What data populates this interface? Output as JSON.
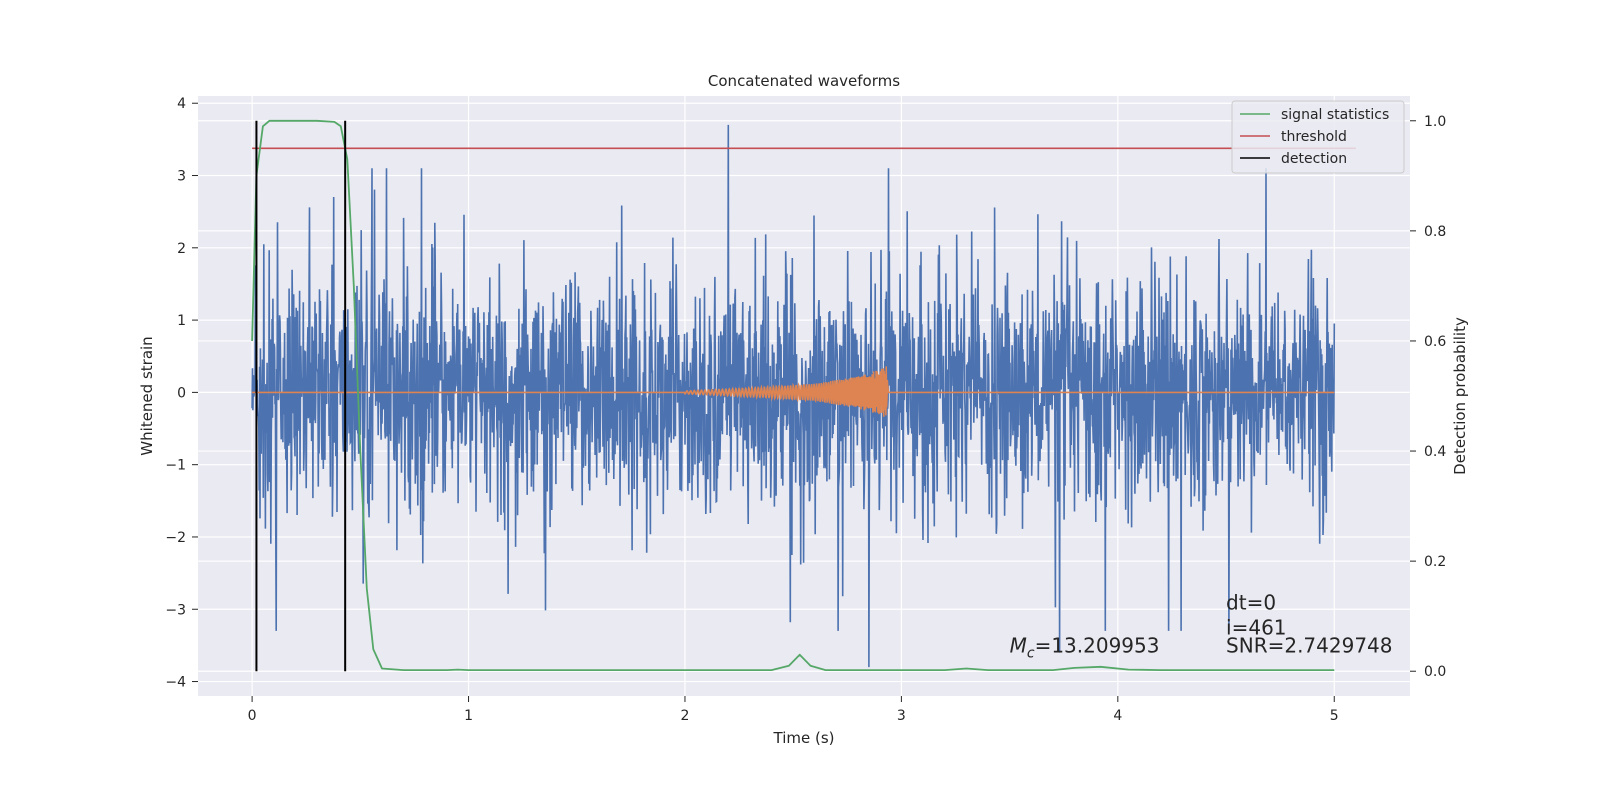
{
  "chart_data": {
    "type": "line",
    "title": "Concatenated waveforms",
    "xlabel": "Time (s)",
    "ylabel_left": "Whitened strain",
    "ylabel_right": "Detection probability",
    "xlim": [
      -0.25,
      5.35
    ],
    "ylim_left": [
      -4.2,
      4.1
    ],
    "ylim_right": [
      -0.045,
      1.045
    ],
    "x_ticks": [
      0,
      1,
      2,
      3,
      4,
      5
    ],
    "y_left_ticks": [
      -4,
      -3,
      -2,
      -1,
      0,
      1,
      2,
      3,
      4
    ],
    "y_right_ticks": [
      "0.0",
      "0.2",
      "0.4",
      "0.6",
      "0.8",
      "1.0"
    ],
    "grid": true,
    "legend_position": "top-right",
    "legend": [
      {
        "label": "signal statistics",
        "color": "#55a868"
      },
      {
        "label": "threshold",
        "color": "#c44e52"
      },
      {
        "label": "detection",
        "color": "#000000"
      }
    ],
    "series": [
      {
        "key": "noise",
        "axis": "left",
        "color": "#4c72b0",
        "x_range": [
          0,
          5
        ],
        "sample_count": 2600,
        "typical_range": [
          -1.2,
          1.2
        ],
        "observed_range": [
          -3.8,
          3.7
        ],
        "peaks": [
          {
            "x": 2.2,
            "y": 3.7
          },
          {
            "x": 3.73,
            "y": -3.6
          },
          {
            "x": 2.85,
            "y": -3.8
          }
        ]
      },
      {
        "key": "injected_waveform",
        "axis": "left",
        "color": "#dd8452",
        "x": [
          0,
          2.0,
          2.3,
          2.6,
          2.8,
          2.9,
          2.93,
          2.94,
          5
        ],
        "amplitude": [
          0,
          0.02,
          0.06,
          0.12,
          0.22,
          0.32,
          0.36,
          0,
          0
        ]
      },
      {
        "name": "signal statistics",
        "axis": "right",
        "color": "#55a868",
        "x": [
          0,
          0.02,
          0.05,
          0.08,
          0.12,
          0.2,
          0.3,
          0.38,
          0.41,
          0.44,
          0.47,
          0.5,
          0.53,
          0.56,
          0.6,
          0.7,
          0.9,
          0.95,
          1.0,
          1.5,
          2.0,
          2.4,
          2.48,
          2.53,
          2.58,
          2.65,
          3.0,
          3.2,
          3.3,
          3.4,
          3.7,
          3.8,
          3.92,
          4.05,
          4.2,
          5.0
        ],
        "y": [
          0.6,
          0.9,
          0.99,
          1.0,
          1.0,
          1.0,
          1.0,
          0.998,
          0.99,
          0.93,
          0.7,
          0.4,
          0.15,
          0.04,
          0.005,
          0.002,
          0.002,
          0.003,
          0.002,
          0.002,
          0.002,
          0.002,
          0.01,
          0.03,
          0.01,
          0.002,
          0.002,
          0.002,
          0.005,
          0.002,
          0.002,
          0.006,
          0.008,
          0.003,
          0.002,
          0.002
        ]
      },
      {
        "name": "threshold",
        "axis": "right",
        "color": "#c44e52",
        "x": [
          0,
          5.1
        ],
        "y": [
          0.95,
          0.95
        ]
      }
    ],
    "detections": {
      "name": "detection",
      "color": "#000000",
      "x": [
        0.02,
        0.43
      ],
      "y_range": [
        0,
        1
      ]
    },
    "annotations": {
      "dt": "dt=0",
      "i": "i=461",
      "snr": "SNR=2.7429748",
      "mc_symbol": "M",
      "mc_subscript": "c",
      "mc_value": "=13.209953"
    },
    "annotation_positions": {
      "dt": {
        "x": 4.5,
        "y": -3.0
      },
      "i": {
        "x": 4.5,
        "y": -3.35
      },
      "snr": {
        "x": 4.5,
        "y": -3.6
      },
      "mc": {
        "x": 3.5,
        "y": -3.6
      }
    }
  }
}
